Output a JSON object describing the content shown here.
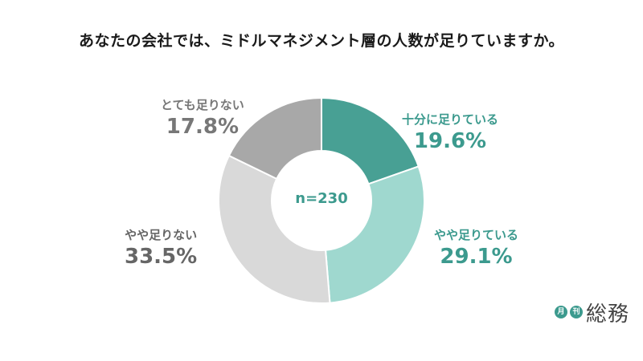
{
  "chart_data": {
    "type": "pie",
    "style": "donut",
    "title": "あなたの会社では、ミドルマネジメント層の人数が足りていますか。",
    "center_label": "n=230",
    "slices": [
      {
        "label": "十分に足りている",
        "value": 19.6,
        "value_label": "19.6%",
        "color": "#48a094",
        "label_color": "#3c9a8e"
      },
      {
        "label": "やや足りている",
        "value": 29.1,
        "value_label": "29.1%",
        "color": "#9fd8cf",
        "label_color": "#3c9a8e"
      },
      {
        "label": "やや足りない",
        "value": 33.5,
        "value_label": "33.5%",
        "color": "#d9d9d9",
        "label_color": "#666666"
      },
      {
        "label": "とても足りない",
        "value": 17.8,
        "value_label": "17.8%",
        "color": "#a8a8a8",
        "label_color": "#777777"
      }
    ]
  },
  "logo": {
    "badges": [
      "月",
      "刊"
    ],
    "text": "総務"
  }
}
